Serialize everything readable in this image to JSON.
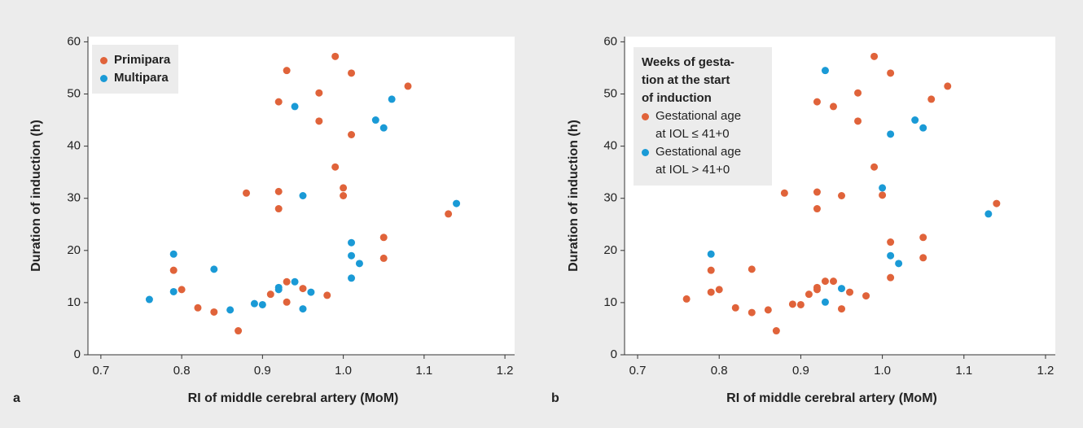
{
  "chart_data": [
    {
      "type": "scatter",
      "panel_label": "a",
      "xlabel": "RI of middle cerebral artery (MoM)",
      "ylabel": "Duration of induction (h)",
      "xlim": [
        0.684,
        1.212
      ],
      "ylim": [
        0,
        61
      ],
      "xticks": [
        0.7,
        0.8,
        0.9,
        {
          "value": 1,
          "label": "1.0"
        },
        1.1,
        1.2
      ],
      "yticks": [
        0,
        10,
        20,
        30,
        40,
        50,
        60
      ],
      "legend": "upper left",
      "series": [
        {
          "name": "Primipara",
          "color": "#e0633a",
          "x": [
            0.79,
            0.8,
            0.82,
            0.84,
            0.87,
            0.88,
            0.91,
            0.92,
            0.92,
            0.92,
            0.93,
            0.93,
            0.93,
            0.95,
            0.97,
            0.97,
            0.98,
            0.99,
            0.99,
            1.0,
            1.0,
            1.01,
            1.01,
            1.05,
            1.05,
            1.08,
            1.13
          ],
          "values": [
            16.2,
            12.5,
            9,
            8.2,
            4.6,
            31,
            11.6,
            48.5,
            31.3,
            28,
            54.5,
            14,
            10.1,
            12.7,
            50.2,
            44.8,
            11.4,
            57.2,
            36,
            32,
            30.5,
            54,
            42.2,
            22.5,
            18.5,
            51.5,
            27
          ]
        },
        {
          "name": "Multipara",
          "color": "#1a9ad6",
          "x": [
            0.76,
            0.79,
            0.79,
            0.84,
            0.86,
            0.89,
            0.9,
            0.92,
            0.92,
            0.94,
            0.94,
            0.95,
            0.95,
            0.96,
            1.01,
            1.01,
            1.01,
            1.02,
            1.04,
            1.05,
            1.06,
            1.14
          ],
          "values": [
            10.6,
            19.3,
            12.1,
            16.4,
            8.6,
            9.8,
            9.6,
            12.9,
            12.5,
            47.6,
            14,
            30.5,
            8.8,
            12,
            21.5,
            19,
            14.7,
            17.5,
            45,
            43.5,
            49,
            29
          ]
        }
      ]
    },
    {
      "type": "scatter",
      "panel_label": "b",
      "xlabel": "RI of middle cerebral artery (MoM)",
      "ylabel": "Duration of induction (h)",
      "xlim": [
        0.684,
        1.212
      ],
      "ylim": [
        0,
        61
      ],
      "xticks": [
        0.7,
        0.8,
        0.9,
        {
          "value": 1,
          "label": "1.0"
        },
        1.1,
        1.2
      ],
      "yticks": [
        0,
        10,
        20,
        30,
        40,
        50,
        60
      ],
      "legend": "upper left",
      "legend_title": [
        "Weeks of gesta-",
        "tion at the start",
        "of induction"
      ],
      "series": [
        {
          "name": "Gestational age at IOL ≤ 41+0",
          "color": "#e0633a",
          "x": [
            0.76,
            0.79,
            0.79,
            0.8,
            0.82,
            0.84,
            0.84,
            0.86,
            0.87,
            0.88,
            0.89,
            0.9,
            0.91,
            0.92,
            0.92,
            0.92,
            0.92,
            0.92,
            0.93,
            0.94,
            0.94,
            0.95,
            0.95,
            0.96,
            0.97,
            0.97,
            0.98,
            0.99,
            0.99,
            1.0,
            1.01,
            1.01,
            1.01,
            1.05,
            1.05,
            1.06,
            1.08,
            1.14
          ],
          "values": [
            10.7,
            16.2,
            12,
            12.5,
            9,
            8.1,
            16.4,
            8.6,
            4.6,
            31,
            9.7,
            9.6,
            11.6,
            48.5,
            31.2,
            28,
            12.9,
            12.5,
            14.1,
            47.6,
            14.1,
            30.5,
            8.8,
            12,
            50.2,
            44.8,
            11.3,
            57.2,
            36,
            30.6,
            54,
            21.6,
            14.8,
            22.5,
            18.6,
            49,
            51.5,
            29
          ]
        },
        {
          "name": "Gestational age at IOL > 41+0",
          "color": "#1a9ad6",
          "x": [
            0.79,
            0.93,
            0.93,
            0.95,
            1.0,
            1.01,
            1.01,
            1.02,
            1.04,
            1.05,
            1.13
          ],
          "values": [
            19.3,
            54.5,
            10.1,
            12.7,
            32,
            42.3,
            19,
            17.5,
            45,
            43.5,
            27
          ]
        }
      ]
    }
  ]
}
